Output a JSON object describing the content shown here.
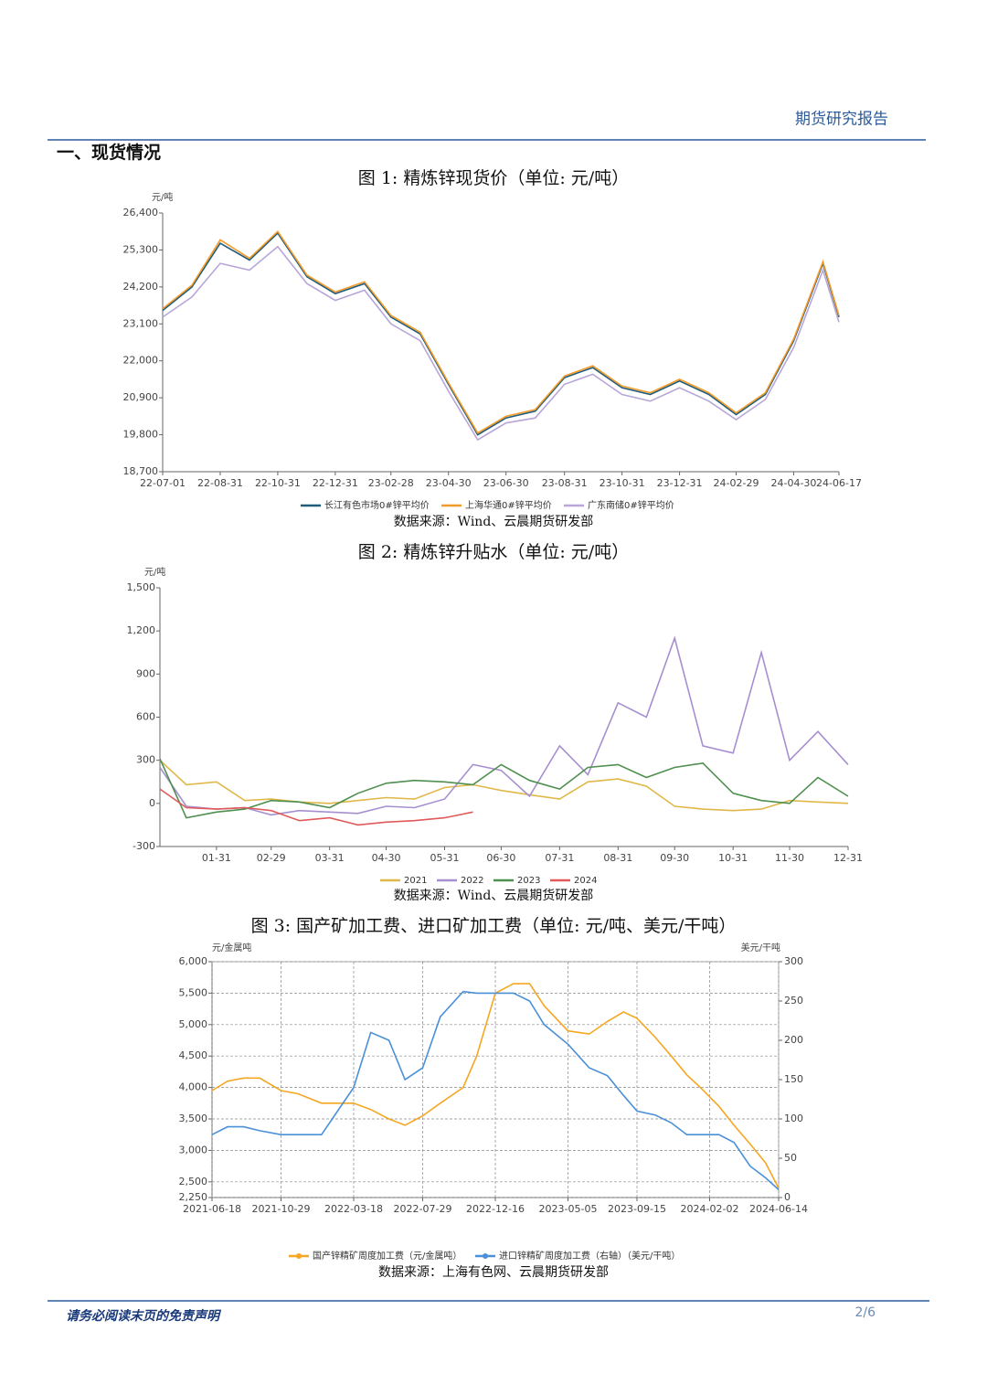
{
  "header": {
    "title": "期货研究报告"
  },
  "section": {
    "title": "一、现货情况"
  },
  "footer": {
    "disclaimer": "请务必阅读末页的免责声明",
    "page": "2/6"
  },
  "chart_data": [
    {
      "type": "line",
      "title": "图 1: 精炼锌现货价（单位: 元/吨）",
      "y_label": "元/吨",
      "source": "数据来源：Wind、云晨期货研发部",
      "legend": "bottom",
      "grid": false,
      "x": [
        "22-07-01",
        "22-08-01",
        "22-08-31",
        "22-10-01",
        "22-10-31",
        "22-12-01",
        "22-12-31",
        "23-01-31",
        "23-02-28",
        "23-03-31",
        "23-04-30",
        "23-05-31",
        "23-06-30",
        "23-07-31",
        "23-08-31",
        "23-09-30",
        "23-10-31",
        "23-11-30",
        "23-12-31",
        "24-01-31",
        "24-02-29",
        "24-03-31",
        "24-04-30",
        "24-05-31",
        "24-06-17"
      ],
      "xlim": [
        "22-07-01",
        "24-06-17"
      ],
      "xticks": [
        "22-07-01",
        "22-08-31",
        "22-10-31",
        "22-12-31",
        "23-02-28",
        "23-04-30",
        "23-06-30",
        "23-08-31",
        "23-10-31",
        "23-12-31",
        "24-02-29",
        "24-04-30",
        "24-06-17"
      ],
      "ylim": [
        18700,
        26400
      ],
      "yticks": [
        {
          "value": 18700,
          "label": "18,700"
        },
        {
          "value": 19800,
          "label": "19,800"
        },
        {
          "value": 20900,
          "label": "20,900"
        },
        {
          "value": 22000,
          "label": "22,000"
        },
        {
          "value": 23100,
          "label": "23,100"
        },
        {
          "value": 24200,
          "label": "24,200"
        },
        {
          "value": 25300,
          "label": "25,300"
        },
        {
          "value": 26400,
          "label": "26,400"
        }
      ],
      "series": [
        {
          "name": "长江有色市场0#锌平均价",
          "color": "#1f5b7a",
          "values": [
            23500,
            24200,
            25500,
            25000,
            25800,
            24500,
            24000,
            24300,
            23300,
            22800,
            21300,
            19800,
            20300,
            20500,
            21500,
            21800,
            21200,
            21000,
            21400,
            21000,
            20400,
            21000,
            22600,
            24900,
            23300
          ]
        },
        {
          "name": "上海华通0#锌平均价",
          "color": "#f39c2a",
          "values": [
            23550,
            24250,
            25600,
            25050,
            25850,
            24550,
            24050,
            24350,
            23350,
            22850,
            21350,
            19850,
            20350,
            20550,
            21550,
            21850,
            21250,
            21050,
            21450,
            21050,
            20450,
            21050,
            22650,
            24950,
            23350
          ]
        },
        {
          "name": "广东南储0#锌平均价",
          "color": "#b8a6d9",
          "values": [
            23300,
            23900,
            24900,
            24700,
            25400,
            24300,
            23800,
            24100,
            23100,
            22600,
            21100,
            19650,
            20150,
            20300,
            21300,
            21600,
            21000,
            20800,
            21200,
            20800,
            20250,
            20850,
            22400,
            24700,
            23150
          ]
        }
      ]
    },
    {
      "type": "line",
      "title": "图 2: 精炼锌升贴水（单位: 元/吨）",
      "y_label": "元/吨",
      "source": "数据来源：Wind、云晨期货研发部",
      "legend": "bottom",
      "grid": false,
      "x": [
        "01-01",
        "01-15",
        "01-31",
        "02-15",
        "02-29",
        "03-15",
        "03-31",
        "04-15",
        "04-30",
        "05-15",
        "05-31",
        "06-15",
        "06-30",
        "07-15",
        "07-31",
        "08-15",
        "08-31",
        "09-15",
        "09-30",
        "10-15",
        "10-31",
        "11-15",
        "11-30",
        "12-15",
        "12-31"
      ],
      "xlim": [
        "01-01",
        "12-31"
      ],
      "xticks": [
        "01-31",
        "02-29",
        "03-31",
        "04-30",
        "05-31",
        "06-30",
        "07-31",
        "08-31",
        "09-30",
        "10-31",
        "11-30",
        "12-31"
      ],
      "ylim": [
        -300,
        1500
      ],
      "yticks": [
        -300,
        0,
        300,
        600,
        900,
        {
          "value": 1200,
          "label": "1,200"
        },
        {
          "value": 1500,
          "label": "1,500"
        }
      ],
      "series": [
        {
          "name": "2021",
          "color": "#e0b84a",
          "values": [
            300,
            130,
            150,
            20,
            30,
            10,
            0,
            20,
            40,
            30,
            110,
            130,
            90,
            60,
            30,
            150,
            170,
            120,
            -20,
            -40,
            -50,
            -40,
            20,
            10,
            0
          ]
        },
        {
          "name": "2022",
          "color": "#a68fd0",
          "values": [
            250,
            -20,
            -40,
            -30,
            -80,
            -50,
            -60,
            -70,
            -20,
            -30,
            30,
            270,
            230,
            50,
            400,
            200,
            700,
            600,
            1150,
            400,
            350,
            1050,
            300,
            500,
            270
          ]
        },
        {
          "name": "2023",
          "color": "#4f8f4f",
          "values": [
            310,
            -100,
            -60,
            -40,
            20,
            10,
            -30,
            70,
            140,
            160,
            150,
            130,
            270,
            160,
            100,
            250,
            270,
            180,
            250,
            280,
            70,
            20,
            0,
            180,
            50
          ]
        },
        {
          "name": "2024",
          "color": "#e05a5a",
          "values": [
            100,
            -30,
            -40,
            -30,
            -50,
            -120,
            -100,
            -150,
            -130,
            -120,
            -100,
            -60,
            null,
            null,
            null,
            null,
            null,
            null,
            null,
            null,
            null,
            null,
            null,
            null,
            null
          ]
        }
      ]
    },
    {
      "type": "line",
      "title": "图 3: 国产矿加工费、进口矿加工费（单位: 元/吨、美元/干吨）",
      "y_label": "元/金属吨",
      "y2_label": "美元/干吨",
      "source": "数据来源：上海有色网、云晨期货研发部",
      "legend": "bottom",
      "grid": true,
      "x": [
        "2021-06-18",
        "2021-07-18",
        "2021-08-18",
        "2021-09-18",
        "2021-10-29",
        "2021-12-01",
        "2022-01-15",
        "2022-03-18",
        "2022-04-20",
        "2022-05-25",
        "2022-06-25",
        "2022-07-29",
        "2022-09-01",
        "2022-10-15",
        "2022-11-10",
        "2022-12-16",
        "2023-01-20",
        "2023-02-20",
        "2023-03-20",
        "2023-05-05",
        "2023-06-15",
        "2023-07-20",
        "2023-08-20",
        "2023-09-15",
        "2023-10-20",
        "2023-11-20",
        "2023-12-20",
        "2024-01-15",
        "2024-02-20",
        "2024-03-20",
        "2024-04-20",
        "2024-05-20",
        "2024-06-14"
      ],
      "xlim": [
        "2021-06-18",
        "2024-06-14"
      ],
      "xticks": [
        "2021-06-18",
        "2021-10-29",
        "2022-03-18",
        "2022-07-29",
        "2022-12-16",
        "2023-05-05",
        "2023-09-15",
        "2024-02-02",
        "2024-06-14"
      ],
      "ylim": [
        2250,
        6000
      ],
      "yticks": [
        {
          "value": 2250,
          "label": "2,250"
        },
        {
          "value": 2500,
          "label": "2,500"
        },
        {
          "value": 3000,
          "label": "3,000"
        },
        {
          "value": 3500,
          "label": "3,500"
        },
        {
          "value": 4000,
          "label": "4,000"
        },
        {
          "value": 4500,
          "label": "4,500"
        },
        {
          "value": 5000,
          "label": "5,000"
        },
        {
          "value": 5500,
          "label": "5,500"
        },
        {
          "value": 6000,
          "label": "6,000"
        }
      ],
      "y2lim": [
        0,
        300
      ],
      "y2ticks": [
        0,
        50,
        100,
        150,
        200,
        250,
        300
      ],
      "series": [
        {
          "name": "国产锌精矿周度加工费（元/金属吨）",
          "color": "#f5a623",
          "values": [
            3950,
            4100,
            4150,
            4150,
            3950,
            3900,
            3750,
            3750,
            3650,
            3500,
            3400,
            3550,
            3750,
            4000,
            4500,
            5500,
            5650,
            5650,
            5300,
            4900,
            4850,
            5050,
            5200,
            5100,
            4800,
            4500,
            4200,
            4000,
            3700,
            3400,
            3100,
            2800,
            2400
          ]
        },
        {
          "name": "进口锌精矿周度加工费（右轴）（美元/干吨）",
          "color": "#4a90d9",
          "axis": "y2",
          "values": [
            80,
            90,
            90,
            85,
            80,
            80,
            80,
            140,
            210,
            200,
            150,
            165,
            230,
            262,
            260,
            260,
            260,
            250,
            220,
            195,
            165,
            155,
            130,
            110,
            105,
            95,
            80,
            80,
            80,
            70,
            40,
            25,
            10
          ]
        }
      ]
    }
  ]
}
